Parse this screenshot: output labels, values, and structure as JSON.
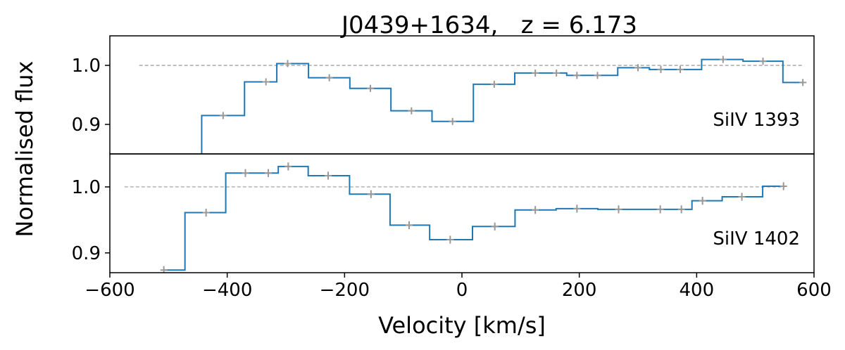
{
  "chart_data": {
    "type": "line",
    "title": "J0439+1634,   z = 6.173",
    "xlabel": "Velocity [km/s]",
    "ylabel": "Normalised flux",
    "xlim": [
      -600,
      600
    ],
    "xticks": [
      -600,
      -400,
      -200,
      0,
      200,
      400,
      600
    ],
    "xtick_labels": [
      "−600",
      "−400",
      "−200",
      "0",
      "200",
      "400",
      "600"
    ],
    "reference_flux": 1.0,
    "panels": [
      {
        "label": "SiIV 1393",
        "ylim": [
          0.85,
          1.05
        ],
        "yticks": [
          0.9,
          1.0
        ],
        "ytick_labels": [
          "0.9",
          "1.0"
        ],
        "reference_line_x": [
          -550,
          580
        ],
        "series": [
          {
            "style": "steps-mid",
            "x": [
              -480,
              -407,
              -334,
              -297,
              -226,
              -156,
              -86,
              -16,
              55,
              125,
              161,
              196,
              231,
              300,
              339,
              372,
              445,
              513,
              581
            ],
            "y": [
              0.835,
              0.915,
              0.972,
              1.003,
              0.979,
              0.961,
              0.923,
              0.905,
              0.968,
              0.987,
              0.987,
              0.983,
              0.983,
              0.996,
              0.993,
              0.993,
              1.01,
              1.007,
              0.971
            ],
            "yerr": [
              0.006,
              0.006,
              0.006,
              0.006,
              0.006,
              0.006,
              0.006,
              0.006,
              0.006,
              0.006,
              0.006,
              0.006,
              0.006,
              0.006,
              0.006,
              0.006,
              0.006,
              0.006,
              0.006
            ]
          }
        ]
      },
      {
        "label": "SiIV 1402",
        "ylim": [
          0.87,
          1.05
        ],
        "yticks": [
          0.9,
          1.0
        ],
        "ytick_labels": [
          "0.9",
          "1.0"
        ],
        "reference_line_x": [
          -575,
          550
        ],
        "series": [
          {
            "style": "steps-mid",
            "x": [
              -508,
              -436,
              -369,
              -330,
              -296,
              -228,
              -155,
              -90,
              -20,
              56,
              125,
              196,
              267,
              338,
              374,
              410,
              477,
              548
            ],
            "y": [
              0.874,
              0.961,
              1.021,
              1.021,
              1.031,
              1.017,
              0.989,
              0.942,
              0.92,
              0.94,
              0.965,
              0.967,
              0.966,
              0.966,
              0.966,
              0.979,
              0.985,
              1.001
            ],
            "yerr": [
              0.006,
              0.006,
              0.006,
              0.006,
              0.006,
              0.006,
              0.006,
              0.006,
              0.006,
              0.006,
              0.006,
              0.006,
              0.006,
              0.006,
              0.006,
              0.006,
              0.006,
              0.006
            ]
          }
        ]
      }
    ],
    "grid": false,
    "colors": {
      "step": "#1f77b4",
      "errorbar": "#999999",
      "reference": "#999999"
    }
  }
}
